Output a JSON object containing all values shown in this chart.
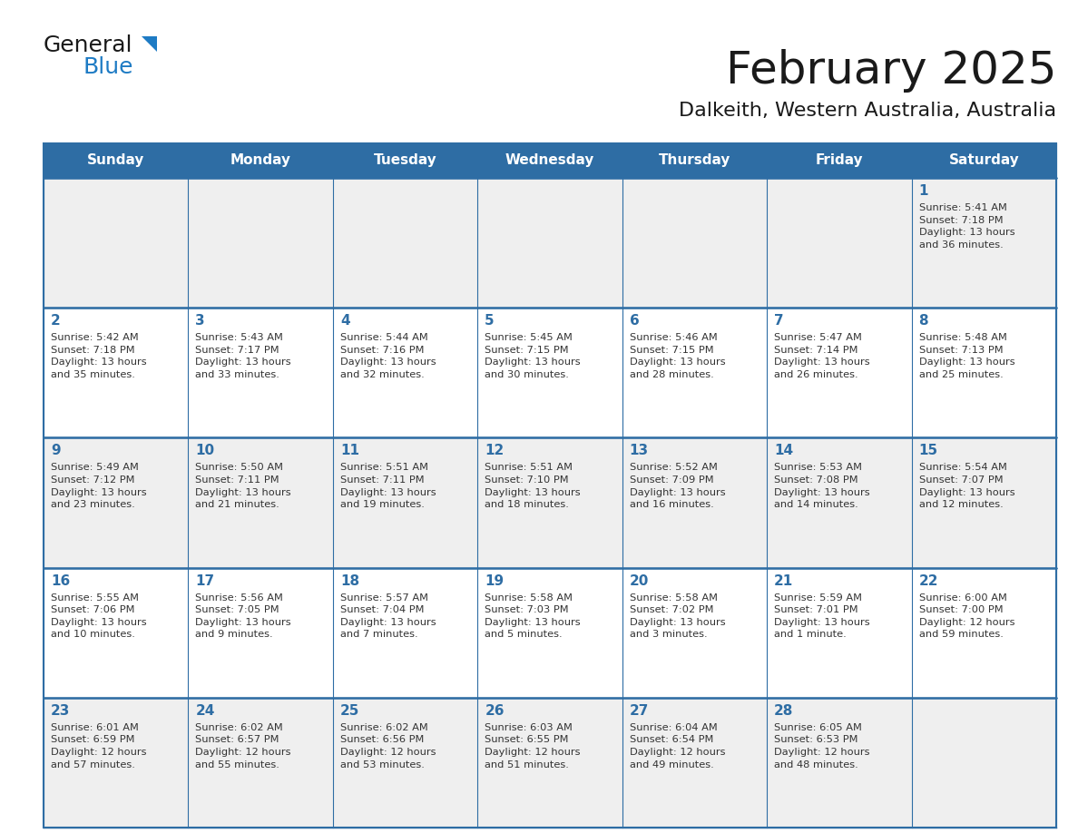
{
  "title": "February 2025",
  "subtitle": "Dalkeith, Western Australia, Australia",
  "header_bg_color": "#2E6DA4",
  "header_text_color": "#FFFFFF",
  "row_bg_odd": "#EFEFEF",
  "row_bg_even": "#FFFFFF",
  "day_number_color": "#2E6DA4",
  "info_text_color": "#333333",
  "border_color": "#2E6DA4",
  "days_of_week": [
    "Sunday",
    "Monday",
    "Tuesday",
    "Wednesday",
    "Thursday",
    "Friday",
    "Saturday"
  ],
  "weeks": [
    [
      {
        "day": "",
        "info": ""
      },
      {
        "day": "",
        "info": ""
      },
      {
        "day": "",
        "info": ""
      },
      {
        "day": "",
        "info": ""
      },
      {
        "day": "",
        "info": ""
      },
      {
        "day": "",
        "info": ""
      },
      {
        "day": "1",
        "info": "Sunrise: 5:41 AM\nSunset: 7:18 PM\nDaylight: 13 hours\nand 36 minutes."
      }
    ],
    [
      {
        "day": "2",
        "info": "Sunrise: 5:42 AM\nSunset: 7:18 PM\nDaylight: 13 hours\nand 35 minutes."
      },
      {
        "day": "3",
        "info": "Sunrise: 5:43 AM\nSunset: 7:17 PM\nDaylight: 13 hours\nand 33 minutes."
      },
      {
        "day": "4",
        "info": "Sunrise: 5:44 AM\nSunset: 7:16 PM\nDaylight: 13 hours\nand 32 minutes."
      },
      {
        "day": "5",
        "info": "Sunrise: 5:45 AM\nSunset: 7:15 PM\nDaylight: 13 hours\nand 30 minutes."
      },
      {
        "day": "6",
        "info": "Sunrise: 5:46 AM\nSunset: 7:15 PM\nDaylight: 13 hours\nand 28 minutes."
      },
      {
        "day": "7",
        "info": "Sunrise: 5:47 AM\nSunset: 7:14 PM\nDaylight: 13 hours\nand 26 minutes."
      },
      {
        "day": "8",
        "info": "Sunrise: 5:48 AM\nSunset: 7:13 PM\nDaylight: 13 hours\nand 25 minutes."
      }
    ],
    [
      {
        "day": "9",
        "info": "Sunrise: 5:49 AM\nSunset: 7:12 PM\nDaylight: 13 hours\nand 23 minutes."
      },
      {
        "day": "10",
        "info": "Sunrise: 5:50 AM\nSunset: 7:11 PM\nDaylight: 13 hours\nand 21 minutes."
      },
      {
        "day": "11",
        "info": "Sunrise: 5:51 AM\nSunset: 7:11 PM\nDaylight: 13 hours\nand 19 minutes."
      },
      {
        "day": "12",
        "info": "Sunrise: 5:51 AM\nSunset: 7:10 PM\nDaylight: 13 hours\nand 18 minutes."
      },
      {
        "day": "13",
        "info": "Sunrise: 5:52 AM\nSunset: 7:09 PM\nDaylight: 13 hours\nand 16 minutes."
      },
      {
        "day": "14",
        "info": "Sunrise: 5:53 AM\nSunset: 7:08 PM\nDaylight: 13 hours\nand 14 minutes."
      },
      {
        "day": "15",
        "info": "Sunrise: 5:54 AM\nSunset: 7:07 PM\nDaylight: 13 hours\nand 12 minutes."
      }
    ],
    [
      {
        "day": "16",
        "info": "Sunrise: 5:55 AM\nSunset: 7:06 PM\nDaylight: 13 hours\nand 10 minutes."
      },
      {
        "day": "17",
        "info": "Sunrise: 5:56 AM\nSunset: 7:05 PM\nDaylight: 13 hours\nand 9 minutes."
      },
      {
        "day": "18",
        "info": "Sunrise: 5:57 AM\nSunset: 7:04 PM\nDaylight: 13 hours\nand 7 minutes."
      },
      {
        "day": "19",
        "info": "Sunrise: 5:58 AM\nSunset: 7:03 PM\nDaylight: 13 hours\nand 5 minutes."
      },
      {
        "day": "20",
        "info": "Sunrise: 5:58 AM\nSunset: 7:02 PM\nDaylight: 13 hours\nand 3 minutes."
      },
      {
        "day": "21",
        "info": "Sunrise: 5:59 AM\nSunset: 7:01 PM\nDaylight: 13 hours\nand 1 minute."
      },
      {
        "day": "22",
        "info": "Sunrise: 6:00 AM\nSunset: 7:00 PM\nDaylight: 12 hours\nand 59 minutes."
      }
    ],
    [
      {
        "day": "23",
        "info": "Sunrise: 6:01 AM\nSunset: 6:59 PM\nDaylight: 12 hours\nand 57 minutes."
      },
      {
        "day": "24",
        "info": "Sunrise: 6:02 AM\nSunset: 6:57 PM\nDaylight: 12 hours\nand 55 minutes."
      },
      {
        "day": "25",
        "info": "Sunrise: 6:02 AM\nSunset: 6:56 PM\nDaylight: 12 hours\nand 53 minutes."
      },
      {
        "day": "26",
        "info": "Sunrise: 6:03 AM\nSunset: 6:55 PM\nDaylight: 12 hours\nand 51 minutes."
      },
      {
        "day": "27",
        "info": "Sunrise: 6:04 AM\nSunset: 6:54 PM\nDaylight: 12 hours\nand 49 minutes."
      },
      {
        "day": "28",
        "info": "Sunrise: 6:05 AM\nSunset: 6:53 PM\nDaylight: 12 hours\nand 48 minutes."
      },
      {
        "day": "",
        "info": ""
      }
    ]
  ],
  "logo_general_color": "#1A1A1A",
  "logo_blue_color": "#1E7BC4",
  "logo_triangle_color": "#1E7BC4",
  "title_color": "#1A1A1A",
  "subtitle_color": "#1A1A1A"
}
